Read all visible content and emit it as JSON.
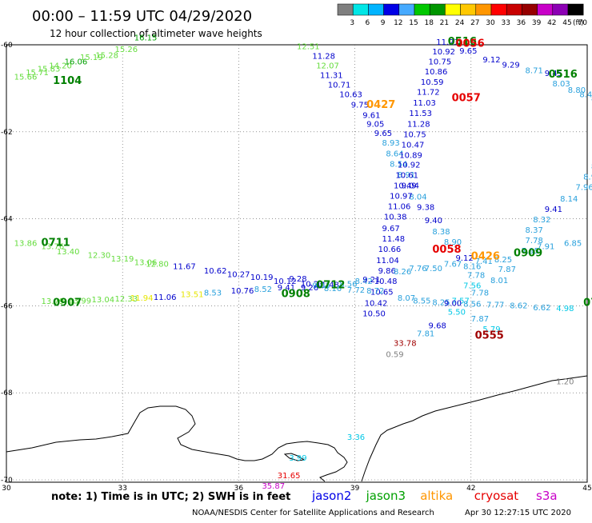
{
  "header": {
    "time_range": "00:00 – 11:59 UTC 04/29/2020",
    "subtitle": "12 hour collection of altimeter wave heights"
  },
  "color_scale": {
    "unit": "(ft)",
    "ticks": [
      "3",
      "6",
      "9",
      "12",
      "15",
      "18",
      "21",
      "24",
      "27",
      "30",
      "33",
      "36",
      "39",
      "42",
      "45",
      "70"
    ],
    "colors": [
      "#7f7f7f",
      "#00e6e6",
      "#00b4ff",
      "#0000e6",
      "#46aaff",
      "#00c800",
      "#009600",
      "#ffff00",
      "#ffc800",
      "#ff9600",
      "#ff0000",
      "#c80000",
      "#960000",
      "#c800c8",
      "#8c00b4",
      "#000000"
    ]
  },
  "axes": {
    "lon_ticks": [
      "30",
      "33",
      "36",
      "39",
      "42",
      "45"
    ],
    "lat_ticks": [
      "-60",
      "-62",
      "-64",
      "-66",
      "-68",
      "-70"
    ]
  },
  "colors": {
    "gray": "#808080",
    "cyan": "#00c8e6",
    "lightblue": "#28a0dc",
    "blue": "#0000cc",
    "ltgreen": "#64dc3c",
    "green": "#00a000",
    "dkgreen": "#008000",
    "yellow": "#e6e600",
    "orange": "#ff9600",
    "red": "#e60000",
    "dkred": "#a00000",
    "magenta": "#c800c8"
  },
  "points": [
    {
      "lon": 30.2,
      "lat": -60.8,
      "v": "15.66",
      "c": "ltgreen"
    },
    {
      "lon": 30.5,
      "lat": -60.7,
      "v": "15.71",
      "c": "ltgreen"
    },
    {
      "lon": 30.8,
      "lat": -60.62,
      "v": "15.83",
      "c": "ltgreen"
    },
    {
      "lon": 31.1,
      "lat": -60.54,
      "v": "14.20",
      "c": "ltgreen"
    },
    {
      "lon": 31.5,
      "lat": -60.45,
      "v": "16.06",
      "c": "green"
    },
    {
      "lon": 31.9,
      "lat": -60.35,
      "v": "15.19",
      "c": "ltgreen"
    },
    {
      "lon": 32.3,
      "lat": -60.3,
      "v": "15.28",
      "c": "ltgreen"
    },
    {
      "lon": 32.8,
      "lat": -60.17,
      "v": "15.26",
      "c": "ltgreen"
    },
    {
      "lon": 33.3,
      "lat": -59.9,
      "v": "16.15",
      "c": "green"
    },
    {
      "lon": 37.5,
      "lat": -60.1,
      "v": "12.51",
      "c": "ltgreen"
    },
    {
      "lon": 37.9,
      "lat": -60.32,
      "v": "11.28",
      "c": "blue"
    },
    {
      "lon": 38.0,
      "lat": -60.54,
      "v": "12.07",
      "c": "ltgreen"
    },
    {
      "lon": 38.1,
      "lat": -60.76,
      "v": "11.31",
      "c": "blue"
    },
    {
      "lon": 38.3,
      "lat": -60.98,
      "v": "10.71",
      "c": "blue"
    },
    {
      "lon": 38.6,
      "lat": -61.2,
      "v": "10.63",
      "c": "blue"
    },
    {
      "lon": 38.9,
      "lat": -61.44,
      "v": "9.75",
      "c": "blue"
    },
    {
      "lon": 39.2,
      "lat": -61.68,
      "v": "9.61",
      "c": "blue"
    },
    {
      "lon": 39.3,
      "lat": -61.88,
      "v": "9.05",
      "c": "blue"
    },
    {
      "lon": 39.5,
      "lat": -62.1,
      "v": "9.65",
      "c": "blue"
    },
    {
      "lon": 39.7,
      "lat": -62.32,
      "v": "8.93",
      "c": "lightblue"
    },
    {
      "lon": 39.8,
      "lat": -62.56,
      "v": "8.64",
      "c": "lightblue"
    },
    {
      "lon": 39.9,
      "lat": -62.8,
      "v": "8.54",
      "c": "lightblue"
    },
    {
      "lon": 40.1,
      "lat": -63.05,
      "v": "8.91",
      "c": "lightblue"
    },
    {
      "lon": 40.2,
      "lat": -63.3,
      "v": "9.04",
      "c": "blue"
    },
    {
      "lon": 40.4,
      "lat": -63.56,
      "v": "8.04",
      "c": "lightblue"
    },
    {
      "lon": 40.6,
      "lat": -63.8,
      "v": "9.38",
      "c": "blue"
    },
    {
      "lon": 40.8,
      "lat": -64.1,
      "v": "9.40",
      "c": "blue"
    },
    {
      "lon": 41.0,
      "lat": -64.36,
      "v": "8.38",
      "c": "lightblue"
    },
    {
      "lon": 41.3,
      "lat": -64.6,
      "v": "8.90",
      "c": "lightblue"
    },
    {
      "lon": 41.6,
      "lat": -64.96,
      "v": "9.12",
      "c": "blue"
    },
    {
      "lon": 41.8,
      "lat": -65.16,
      "v": "8.16",
      "c": "lightblue"
    },
    {
      "lon": 41.9,
      "lat": -65.36,
      "v": "7.78",
      "c": "lightblue"
    },
    {
      "lon": 41.8,
      "lat": -65.6,
      "v": "7.56",
      "c": "cyan"
    },
    {
      "lon": 41.5,
      "lat": -65.95,
      "v": "7.57",
      "c": "cyan"
    },
    {
      "lon": 41.4,
      "lat": -66.2,
      "v": "5.50",
      "c": "cyan"
    },
    {
      "lon": 40.9,
      "lat": -66.52,
      "v": "9.68",
      "c": "blue"
    },
    {
      "lon": 40.6,
      "lat": -66.7,
      "v": "7.81",
      "c": "lightblue"
    },
    {
      "lon": 40.0,
      "lat": -66.92,
      "v": "33.78",
      "c": "dkred"
    },
    {
      "lon": 39.8,
      "lat": -67.18,
      "v": "0.59",
      "c": "gray"
    },
    {
      "lon": 41.1,
      "lat": -60.0,
      "v": "11.23",
      "c": "blue"
    },
    {
      "lon": 41.0,
      "lat": -60.22,
      "v": "10.92",
      "c": "blue"
    },
    {
      "lon": 40.9,
      "lat": -60.45,
      "v": "10.75",
      "c": "blue"
    },
    {
      "lon": 40.8,
      "lat": -60.68,
      "v": "10.86",
      "c": "blue"
    },
    {
      "lon": 40.7,
      "lat": -60.92,
      "v": "10.59",
      "c": "blue"
    },
    {
      "lon": 40.6,
      "lat": -61.15,
      "v": "11.72",
      "c": "blue"
    },
    {
      "lon": 40.5,
      "lat": -61.4,
      "v": "11.03",
      "c": "blue"
    },
    {
      "lon": 40.4,
      "lat": -61.64,
      "v": "11.53",
      "c": "blue"
    },
    {
      "lon": 40.35,
      "lat": -61.88,
      "v": "11.28",
      "c": "blue"
    },
    {
      "lon": 40.25,
      "lat": -62.12,
      "v": "10.75",
      "c": "blue"
    },
    {
      "lon": 40.2,
      "lat": -62.36,
      "v": "10.47",
      "c": "blue"
    },
    {
      "lon": 40.15,
      "lat": -62.6,
      "v": "10.89",
      "c": "blue"
    },
    {
      "lon": 40.1,
      "lat": -62.82,
      "v": "10.92",
      "c": "blue"
    },
    {
      "lon": 40.05,
      "lat": -63.06,
      "v": "10.61",
      "c": "blue"
    },
    {
      "lon": 40.0,
      "lat": -63.3,
      "v": "10.49",
      "c": "blue"
    },
    {
      "lon": 39.9,
      "lat": -63.54,
      "v": "10.97",
      "c": "blue"
    },
    {
      "lon": 39.85,
      "lat": -63.78,
      "v": "11.06",
      "c": "blue"
    },
    {
      "lon": 39.75,
      "lat": -64.02,
      "v": "10.38",
      "c": "blue"
    },
    {
      "lon": 39.7,
      "lat": -64.28,
      "v": "9.67",
      "c": "blue"
    },
    {
      "lon": 39.7,
      "lat": -64.52,
      "v": "11.48",
      "c": "blue"
    },
    {
      "lon": 39.6,
      "lat": -64.76,
      "v": "10.66",
      "c": "blue"
    },
    {
      "lon": 39.55,
      "lat": -65.02,
      "v": "11.04",
      "c": "blue"
    },
    {
      "lon": 39.6,
      "lat": -65.26,
      "v": "9.86",
      "c": "blue"
    },
    {
      "lon": 39.5,
      "lat": -65.5,
      "v": "10.48",
      "c": "blue"
    },
    {
      "lon": 39.4,
      "lat": -65.74,
      "v": "10.65",
      "c": "blue"
    },
    {
      "lon": 39.25,
      "lat": -66.0,
      "v": "10.42",
      "c": "blue"
    },
    {
      "lon": 39.2,
      "lat": -66.24,
      "v": "10.50",
      "c": "blue"
    },
    {
      "lon": 41.7,
      "lat": -60.2,
      "v": "9.65",
      "c": "blue"
    },
    {
      "lon": 42.3,
      "lat": -60.4,
      "v": "9.12",
      "c": "blue"
    },
    {
      "lon": 42.8,
      "lat": -60.52,
      "v": "9.29",
      "c": "blue"
    },
    {
      "lon": 43.4,
      "lat": -60.65,
      "v": "8.71",
      "c": "lightblue"
    },
    {
      "lon": 43.9,
      "lat": -60.72,
      "v": "9.45",
      "c": "blue"
    },
    {
      "lon": 44.1,
      "lat": -60.96,
      "v": "8.03",
      "c": "lightblue"
    },
    {
      "lon": 44.5,
      "lat": -61.1,
      "v": "8.80",
      "c": "lightblue"
    },
    {
      "lon": 44.8,
      "lat": -61.2,
      "v": "8.40",
      "c": "lightblue"
    },
    {
      "lon": 45.1,
      "lat": -61.3,
      "v": "8.13",
      "c": "lightblue"
    },
    {
      "lon": 45.2,
      "lat": -62.0,
      "v": "11.",
      "c": "blue"
    },
    {
      "lon": 45.2,
      "lat": -62.6,
      "v": "8.33",
      "c": "lightblue"
    },
    {
      "lon": 45.1,
      "lat": -62.86,
      "v": "8.69",
      "c": "lightblue"
    },
    {
      "lon": 44.9,
      "lat": -63.1,
      "v": "8.98",
      "c": "lightblue"
    },
    {
      "lon": 44.7,
      "lat": -63.34,
      "v": "7.96",
      "c": "lightblue"
    },
    {
      "lon": 44.3,
      "lat": -63.6,
      "v": "8.14",
      "c": "lightblue"
    },
    {
      "lon": 43.9,
      "lat": -63.84,
      "v": "9.41",
      "c": "blue"
    },
    {
      "lon": 43.6,
      "lat": -64.08,
      "v": "8.32",
      "c": "lightblue"
    },
    {
      "lon": 43.4,
      "lat": -64.32,
      "v": "8.37",
      "c": "lightblue"
    },
    {
      "lon": 43.4,
      "lat": -64.56,
      "v": "7.78",
      "c": "lightblue"
    },
    {
      "lon": 43.7,
      "lat": -64.7,
      "v": "7.91",
      "c": "lightblue"
    },
    {
      "lon": 43.3,
      "lat": -64.8,
      "v": "7.95",
      "c": "lightblue"
    },
    {
      "lon": 44.4,
      "lat": -64.62,
      "v": "6.85",
      "c": "lightblue"
    },
    {
      "lon": 30.2,
      "lat": -64.62,
      "v": "13.86",
      "c": "ltgreen"
    },
    {
      "lon": 30.9,
      "lat": -64.7,
      "v": "13.76",
      "c": "ltgreen"
    },
    {
      "lon": 31.3,
      "lat": -64.82,
      "v": "13.40",
      "c": "ltgreen"
    },
    {
      "lon": 32.1,
      "lat": -64.9,
      "v": "12.30",
      "c": "ltgreen"
    },
    {
      "lon": 32.7,
      "lat": -64.98,
      "v": "13.19",
      "c": "ltgreen"
    },
    {
      "lon": 33.3,
      "lat": -65.06,
      "v": "13.06",
      "c": "ltgreen"
    },
    {
      "lon": 33.6,
      "lat": -65.1,
      "v": "12.80",
      "c": "ltgreen"
    },
    {
      "lon": 34.3,
      "lat": -65.16,
      "v": "11.67",
      "c": "blue"
    },
    {
      "lon": 35.1,
      "lat": -65.26,
      "v": "10.62",
      "c": "blue"
    },
    {
      "lon": 35.7,
      "lat": -65.34,
      "v": "10.27",
      "c": "blue"
    },
    {
      "lon": 36.3,
      "lat": -65.4,
      "v": "10.19",
      "c": "blue"
    },
    {
      "lon": 36.9,
      "lat": -65.5,
      "v": "10.12",
      "c": "blue"
    },
    {
      "lon": 37.3,
      "lat": -65.44,
      "v": "9.28",
      "c": "blue"
    },
    {
      "lon": 37.6,
      "lat": -65.56,
      "v": "10.23",
      "c": "blue"
    },
    {
      "lon": 38.0,
      "lat": -65.58,
      "v": "11.48",
      "c": "blue"
    },
    {
      "lon": 38.6,
      "lat": -65.56,
      "v": "8.56",
      "c": "lightblue"
    },
    {
      "lon": 39.0,
      "lat": -65.5,
      "v": "8.42",
      "c": "lightblue"
    },
    {
      "lon": 39.2,
      "lat": -65.46,
      "v": "9.21",
      "c": "blue"
    },
    {
      "lon": 40.0,
      "lat": -65.28,
      "v": "8.26",
      "c": "lightblue"
    },
    {
      "lon": 40.4,
      "lat": -65.2,
      "v": "7.76",
      "c": "lightblue"
    },
    {
      "lon": 40.8,
      "lat": -65.2,
      "v": "7.50",
      "c": "lightblue"
    },
    {
      "lon": 41.3,
      "lat": -65.1,
      "v": "7.67",
      "c": "lightblue"
    },
    {
      "lon": 42.1,
      "lat": -65.04,
      "v": "7.41",
      "c": "lightblue"
    },
    {
      "lon": 42.6,
      "lat": -65.0,
      "v": "8.25",
      "c": "lightblue"
    },
    {
      "lon": 42.7,
      "lat": -65.22,
      "v": "7.87",
      "c": "lightblue"
    },
    {
      "lon": 42.5,
      "lat": -65.48,
      "v": "8.01",
      "c": "lightblue"
    },
    {
      "lon": 42.0,
      "lat": -65.76,
      "v": "7.78",
      "c": "lightblue"
    },
    {
      "lon": 30.9,
      "lat": -65.96,
      "v": "13.79",
      "c": "ltgreen"
    },
    {
      "lon": 31.6,
      "lat": -65.95,
      "v": "13.99",
      "c": "ltgreen"
    },
    {
      "lon": 32.2,
      "lat": -65.92,
      "v": "13.04",
      "c": "ltgreen"
    },
    {
      "lon": 32.8,
      "lat": -65.9,
      "v": "12.33",
      "c": "ltgreen"
    },
    {
      "lon": 33.2,
      "lat": -65.88,
      "v": "11.94",
      "c": "yellow"
    },
    {
      "lon": 33.8,
      "lat": -65.86,
      "v": "11.06",
      "c": "blue"
    },
    {
      "lon": 34.5,
      "lat": -65.8,
      "v": "13.51",
      "c": "yellow"
    },
    {
      "lon": 35.1,
      "lat": -65.76,
      "v": "8.53",
      "c": "lightblue"
    },
    {
      "lon": 35.8,
      "lat": -65.72,
      "v": "10.76",
      "c": "blue"
    },
    {
      "lon": 36.4,
      "lat": -65.68,
      "v": "8.52",
      "c": "lightblue"
    },
    {
      "lon": 37.0,
      "lat": -65.64,
      "v": "9.41",
      "c": "blue"
    },
    {
      "lon": 37.6,
      "lat": -65.64,
      "v": "9.26",
      "c": "blue"
    },
    {
      "lon": 37.9,
      "lat": -65.6,
      "v": "9.03",
      "c": "lightblue"
    },
    {
      "lon": 38.2,
      "lat": -65.66,
      "v": "8.16",
      "c": "lightblue"
    },
    {
      "lon": 38.8,
      "lat": -65.7,
      "v": "7.72",
      "c": "lightblue"
    },
    {
      "lon": 39.3,
      "lat": -65.72,
      "v": "8.72",
      "c": "lightblue"
    },
    {
      "lon": 40.1,
      "lat": -65.88,
      "v": "8.07",
      "c": "lightblue"
    },
    {
      "lon": 40.5,
      "lat": -65.95,
      "v": "8.55",
      "c": "lightblue"
    },
    {
      "lon": 41.0,
      "lat": -65.98,
      "v": "8.25",
      "c": "lightblue"
    },
    {
      "lon": 41.3,
      "lat": -66.0,
      "v": "9.00",
      "c": "blue"
    },
    {
      "lon": 41.8,
      "lat": -66.02,
      "v": "8.56",
      "c": "lightblue"
    },
    {
      "lon": 42.4,
      "lat": -66.04,
      "v": "7.77",
      "c": "lightblue"
    },
    {
      "lon": 43.0,
      "lat": -66.06,
      "v": "8.62",
      "c": "lightblue"
    },
    {
      "lon": 43.6,
      "lat": -66.1,
      "v": "6.62",
      "c": "lightblue"
    },
    {
      "lon": 44.2,
      "lat": -66.12,
      "v": "4.98",
      "c": "cyan"
    },
    {
      "lon": 42.0,
      "lat": -66.36,
      "v": "7.87",
      "c": "lightblue"
    },
    {
      "lon": 42.3,
      "lat": -66.6,
      "v": "5.79",
      "c": "cyan"
    },
    {
      "lon": 44.2,
      "lat": -67.8,
      "v": "1.20",
      "c": "gray"
    },
    {
      "lon": 38.8,
      "lat": -69.08,
      "v": "3.36",
      "c": "cyan"
    },
    {
      "lon": 37.3,
      "lat": -69.56,
      "v": "3.99",
      "c": "cyan"
    },
    {
      "lon": 37.0,
      "lat": -69.96,
      "v": "31.65",
      "c": "red"
    },
    {
      "lon": 36.6,
      "lat": -70.2,
      "v": "35.87",
      "c": "magenta"
    }
  ],
  "time_labels": [
    {
      "lon": 31.2,
      "lat": -60.9,
      "t": "1104",
      "c": "dkgreen"
    },
    {
      "lon": 39.3,
      "lat": -61.45,
      "t": "0427",
      "c": "orange"
    },
    {
      "lon": 41.4,
      "lat": -60.0,
      "t": "0516",
      "c": "dkgreen"
    },
    {
      "lon": 41.6,
      "lat": -60.05,
      "t": "0056",
      "c": "red"
    },
    {
      "lon": 41.5,
      "lat": -61.3,
      "t": "0057",
      "c": "red"
    },
    {
      "lon": 44.0,
      "lat": -60.75,
      "t": "0516",
      "c": "dkgreen"
    },
    {
      "lon": 45.2,
      "lat": -63.7,
      "t": "055",
      "c": "dkred"
    },
    {
      "lon": 30.9,
      "lat": -64.62,
      "t": "0711",
      "c": "dkgreen"
    },
    {
      "lon": 41.0,
      "lat": -64.78,
      "t": "0058",
      "c": "red"
    },
    {
      "lon": 42.0,
      "lat": -64.94,
      "t": "0426",
      "c": "orange"
    },
    {
      "lon": 43.1,
      "lat": -64.86,
      "t": "0909",
      "c": "dkgreen"
    },
    {
      "lon": 38.0,
      "lat": -65.6,
      "t": "0712",
      "c": "dkgreen"
    },
    {
      "lon": 37.1,
      "lat": -65.8,
      "t": "0908",
      "c": "dkgreen"
    },
    {
      "lon": 31.2,
      "lat": -66.0,
      "t": "0907",
      "c": "dkgreen"
    },
    {
      "lon": 44.9,
      "lat": -66.0,
      "t": "0713",
      "c": "dkgreen"
    },
    {
      "lon": 42.1,
      "lat": -66.76,
      "t": "0555",
      "c": "dkred"
    },
    {
      "lon": 45.3,
      "lat": -67.82,
      "t": "0",
      "c": "orange"
    }
  ],
  "footer": {
    "note": "note: 1) Time is in UTC; 2) SWH is in feet",
    "satellites": [
      {
        "name": "jason2",
        "color": "#0000e6"
      },
      {
        "name": "jason3",
        "color": "#00a000"
      },
      {
        "name": "altika",
        "color": "#ff9600"
      },
      {
        "name": "cryosat",
        "color": "#e60000"
      },
      {
        "name": "s3a",
        "color": "#c800c8"
      }
    ],
    "credit": "NOAA/NESDIS Center for Satellite Applications and Research",
    "generated": "Apr 30 12:27:15 UTC 2020"
  }
}
